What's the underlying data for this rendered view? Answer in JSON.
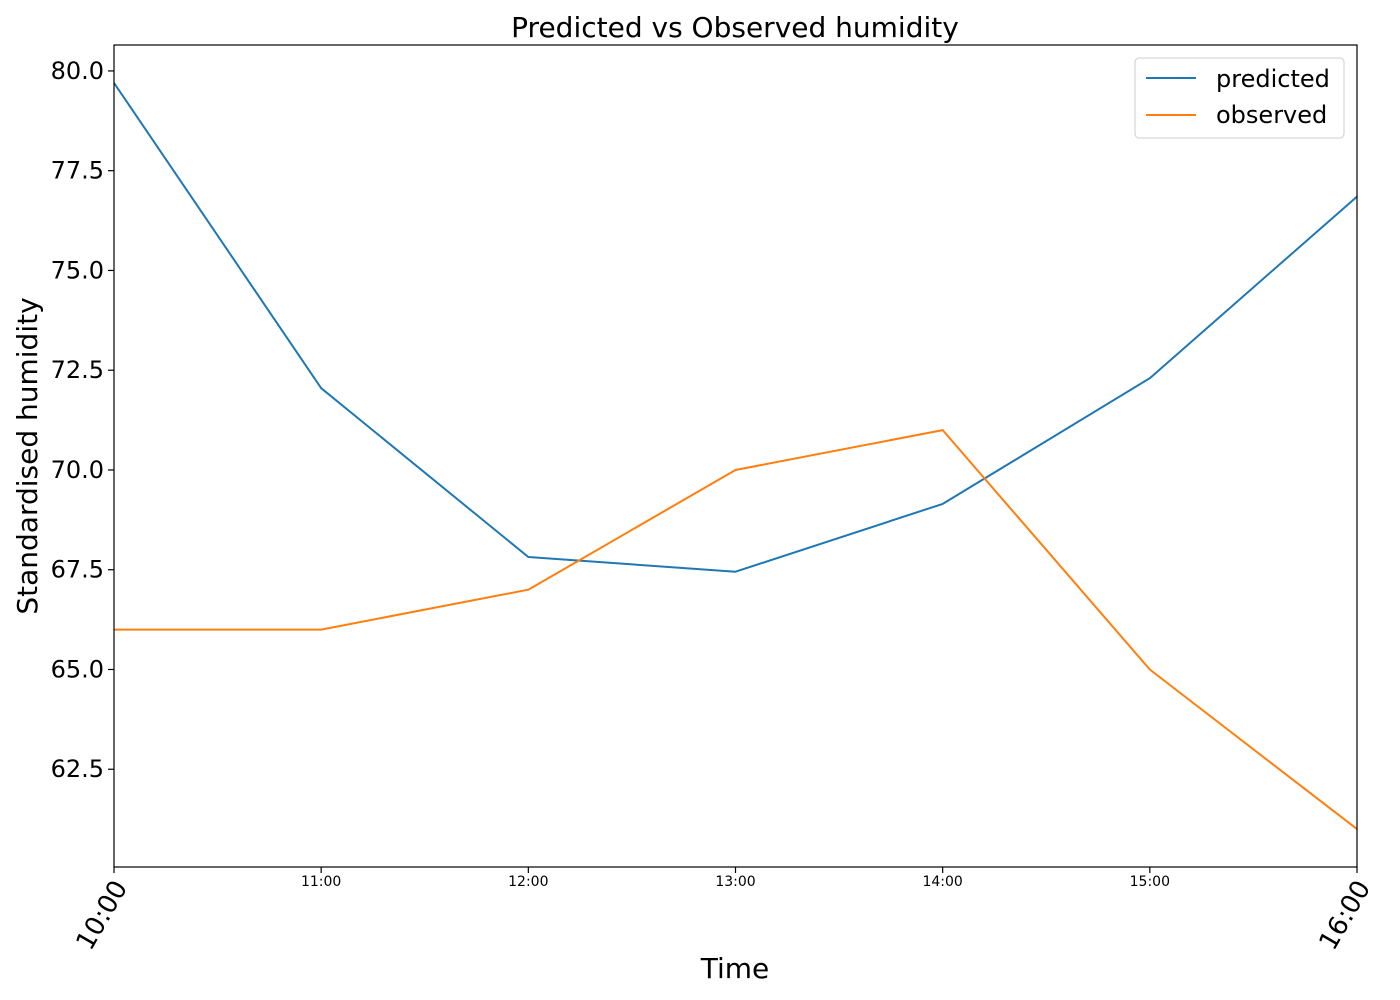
{
  "chart_data": {
    "type": "line",
    "title": "Predicted vs Observed humidity",
    "xlabel": "Time",
    "ylabel": "Standardised humidity",
    "categories": [
      "10:00",
      "11:00",
      "12:00",
      "13:00",
      "14:00",
      "15:00",
      "16:00"
    ],
    "series": [
      {
        "name": "predicted",
        "color": "#1f77b4",
        "values": [
          79.7,
          72.05,
          67.82,
          67.45,
          69.15,
          72.3,
          76.85
        ]
      },
      {
        "name": "observed",
        "color": "#ff7f0e",
        "values": [
          66.0,
          66.0,
          67.0,
          70.0,
          71.0,
          65.0,
          61.0
        ]
      }
    ],
    "yticks": [
      "62.5",
      "65.0",
      "67.5",
      "70.0",
      "72.5",
      "75.0",
      "77.5",
      "80.0"
    ],
    "ylim": [
      60.05,
      80.65
    ],
    "xlim": [
      "10:00",
      "16:00"
    ],
    "legend_position": "top-right",
    "grid": false
  }
}
